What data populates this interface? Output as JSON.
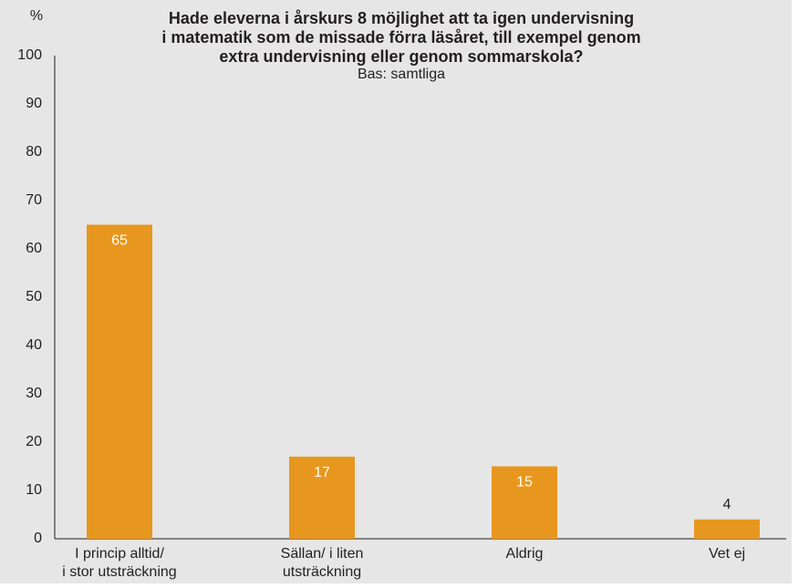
{
  "chart_data": {
    "type": "bar",
    "title": [
      "Hade eleverna i årskurs 8 möjlighet att ta igen undervisning",
      "i matematik som de missade förra läsåret, till exempel genom",
      "extra undervisning eller genom sommarskola?"
    ],
    "subtitle": "Bas: samtliga",
    "y_label": "%",
    "categories": [
      [
        "I princip alltid/",
        "i stor utsträckning"
      ],
      [
        "Sällan/ i liten",
        "utsträckning"
      ],
      [
        "Aldrig"
      ],
      [
        "Vet ej"
      ]
    ],
    "values": [
      65,
      17,
      15,
      4
    ],
    "color": "#e8971e",
    "ylim": [
      0,
      100
    ],
    "yticks": [
      0,
      10,
      20,
      30,
      40,
      50,
      60,
      70,
      80,
      90,
      100
    ],
    "grid": false
  }
}
